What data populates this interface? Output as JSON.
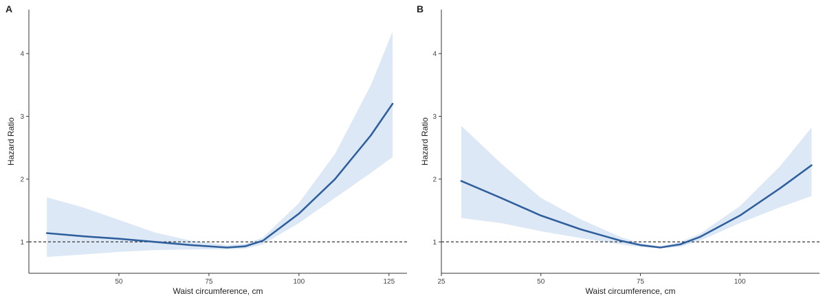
{
  "chart_data": [
    {
      "panel": "A",
      "type": "line",
      "xlabel": "Waist circumference, cm",
      "ylabel": "Hazard Ratio",
      "xlim": [
        25,
        130
      ],
      "ylim": [
        0.5,
        4.7
      ],
      "xticks": [
        50,
        75,
        100,
        125
      ],
      "yticks": [
        1,
        2,
        3,
        4
      ],
      "reference_line": 1,
      "series": [
        {
          "x": [
            30,
            40,
            50,
            60,
            70,
            80,
            85,
            90,
            100,
            110,
            120,
            126
          ],
          "y": [
            1.14,
            1.09,
            1.05,
            1.0,
            0.95,
            0.91,
            0.93,
            1.02,
            1.45,
            2.0,
            2.7,
            3.2
          ],
          "lower": [
            0.76,
            0.8,
            0.84,
            0.87,
            0.88,
            0.88,
            0.89,
            0.96,
            1.3,
            1.7,
            2.1,
            2.35
          ],
          "upper": [
            1.71,
            1.55,
            1.35,
            1.15,
            1.02,
            0.95,
            0.97,
            1.07,
            1.62,
            2.4,
            3.5,
            4.35
          ]
        }
      ],
      "colors": {
        "line": "#2f5f9c",
        "band": "#dce8f5"
      }
    },
    {
      "panel": "B",
      "type": "line",
      "xlabel": "Waist circumference, cm",
      "ylabel": "Hazard Ratio",
      "xlim": [
        25,
        120
      ],
      "ylim": [
        0.5,
        4.7
      ],
      "xticks": [
        25,
        50,
        75,
        100
      ],
      "yticks": [
        1,
        2,
        3,
        4
      ],
      "reference_line": 1,
      "series": [
        {
          "x": [
            30,
            40,
            50,
            60,
            70,
            75,
            80,
            85,
            90,
            100,
            110,
            118
          ],
          "y": [
            1.97,
            1.7,
            1.42,
            1.2,
            1.02,
            0.95,
            0.91,
            0.96,
            1.08,
            1.42,
            1.85,
            2.22
          ],
          "lower": [
            1.38,
            1.3,
            1.17,
            1.06,
            0.96,
            0.92,
            0.9,
            0.92,
            1.02,
            1.3,
            1.55,
            1.73
          ],
          "upper": [
            2.85,
            2.25,
            1.7,
            1.36,
            1.08,
            0.98,
            0.93,
            1.0,
            1.13,
            1.57,
            2.2,
            2.82
          ]
        }
      ],
      "colors": {
        "line": "#2f5f9c",
        "band": "#dce8f5"
      }
    }
  ]
}
